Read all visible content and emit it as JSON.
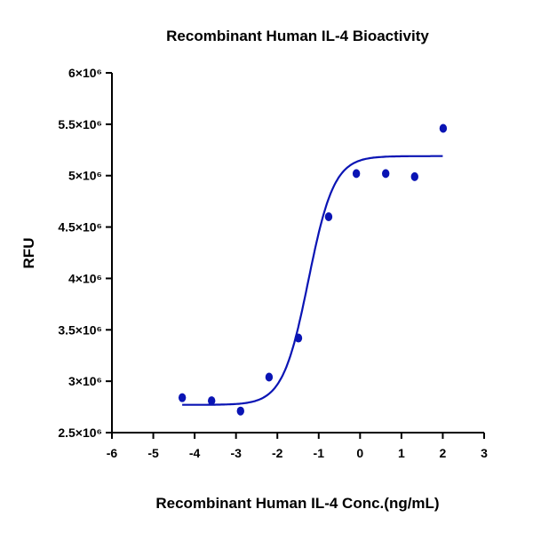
{
  "chart_data": {
    "type": "scatter",
    "title": "Recombinant Human IL-4 Bioactivity",
    "xlabel": "Recombinant Human IL-4 Conc.(ng/mL)",
    "ylabel": "RFU",
    "xlim": [
      -6,
      3
    ],
    "ylim": [
      2500000,
      6000000
    ],
    "x_ticks": [
      -6,
      -5,
      -4,
      -3,
      -2,
      -1,
      0,
      1,
      2,
      3
    ],
    "x_tick_labels": [
      "-6",
      "-5",
      "-4",
      "-3",
      "-2",
      "-1",
      "0",
      "1",
      "2",
      "3"
    ],
    "y_ticks": [
      2500000,
      3000000,
      3500000,
      4000000,
      4500000,
      5000000,
      5500000,
      6000000
    ],
    "y_tick_labels": [
      "2.5×10⁶",
      "3×10⁶",
      "3.5×10⁶",
      "4×10⁶",
      "4.5×10⁶",
      "5×10⁶",
      "5.5×10⁶",
      "6×10⁶"
    ],
    "grid": false,
    "series": [
      {
        "name": "data",
        "color": "#0a14b4",
        "x": [
          -4.3,
          -3.59,
          -2.89,
          -2.2,
          -1.49,
          -0.76,
          -0.09,
          0.62,
          1.32,
          2.01
        ],
        "y": [
          2840000,
          2810000,
          2710000,
          3040000,
          3420000,
          4600000,
          5020000,
          5020000,
          4990000,
          5460000
        ]
      }
    ],
    "fit": {
      "model": "4PL",
      "color": "#0a14b4",
      "bottom": 2770000,
      "top": 5190000,
      "logEC50": -1.25,
      "hill": 1.4,
      "x_range": [
        -4.3,
        2.0
      ]
    }
  }
}
